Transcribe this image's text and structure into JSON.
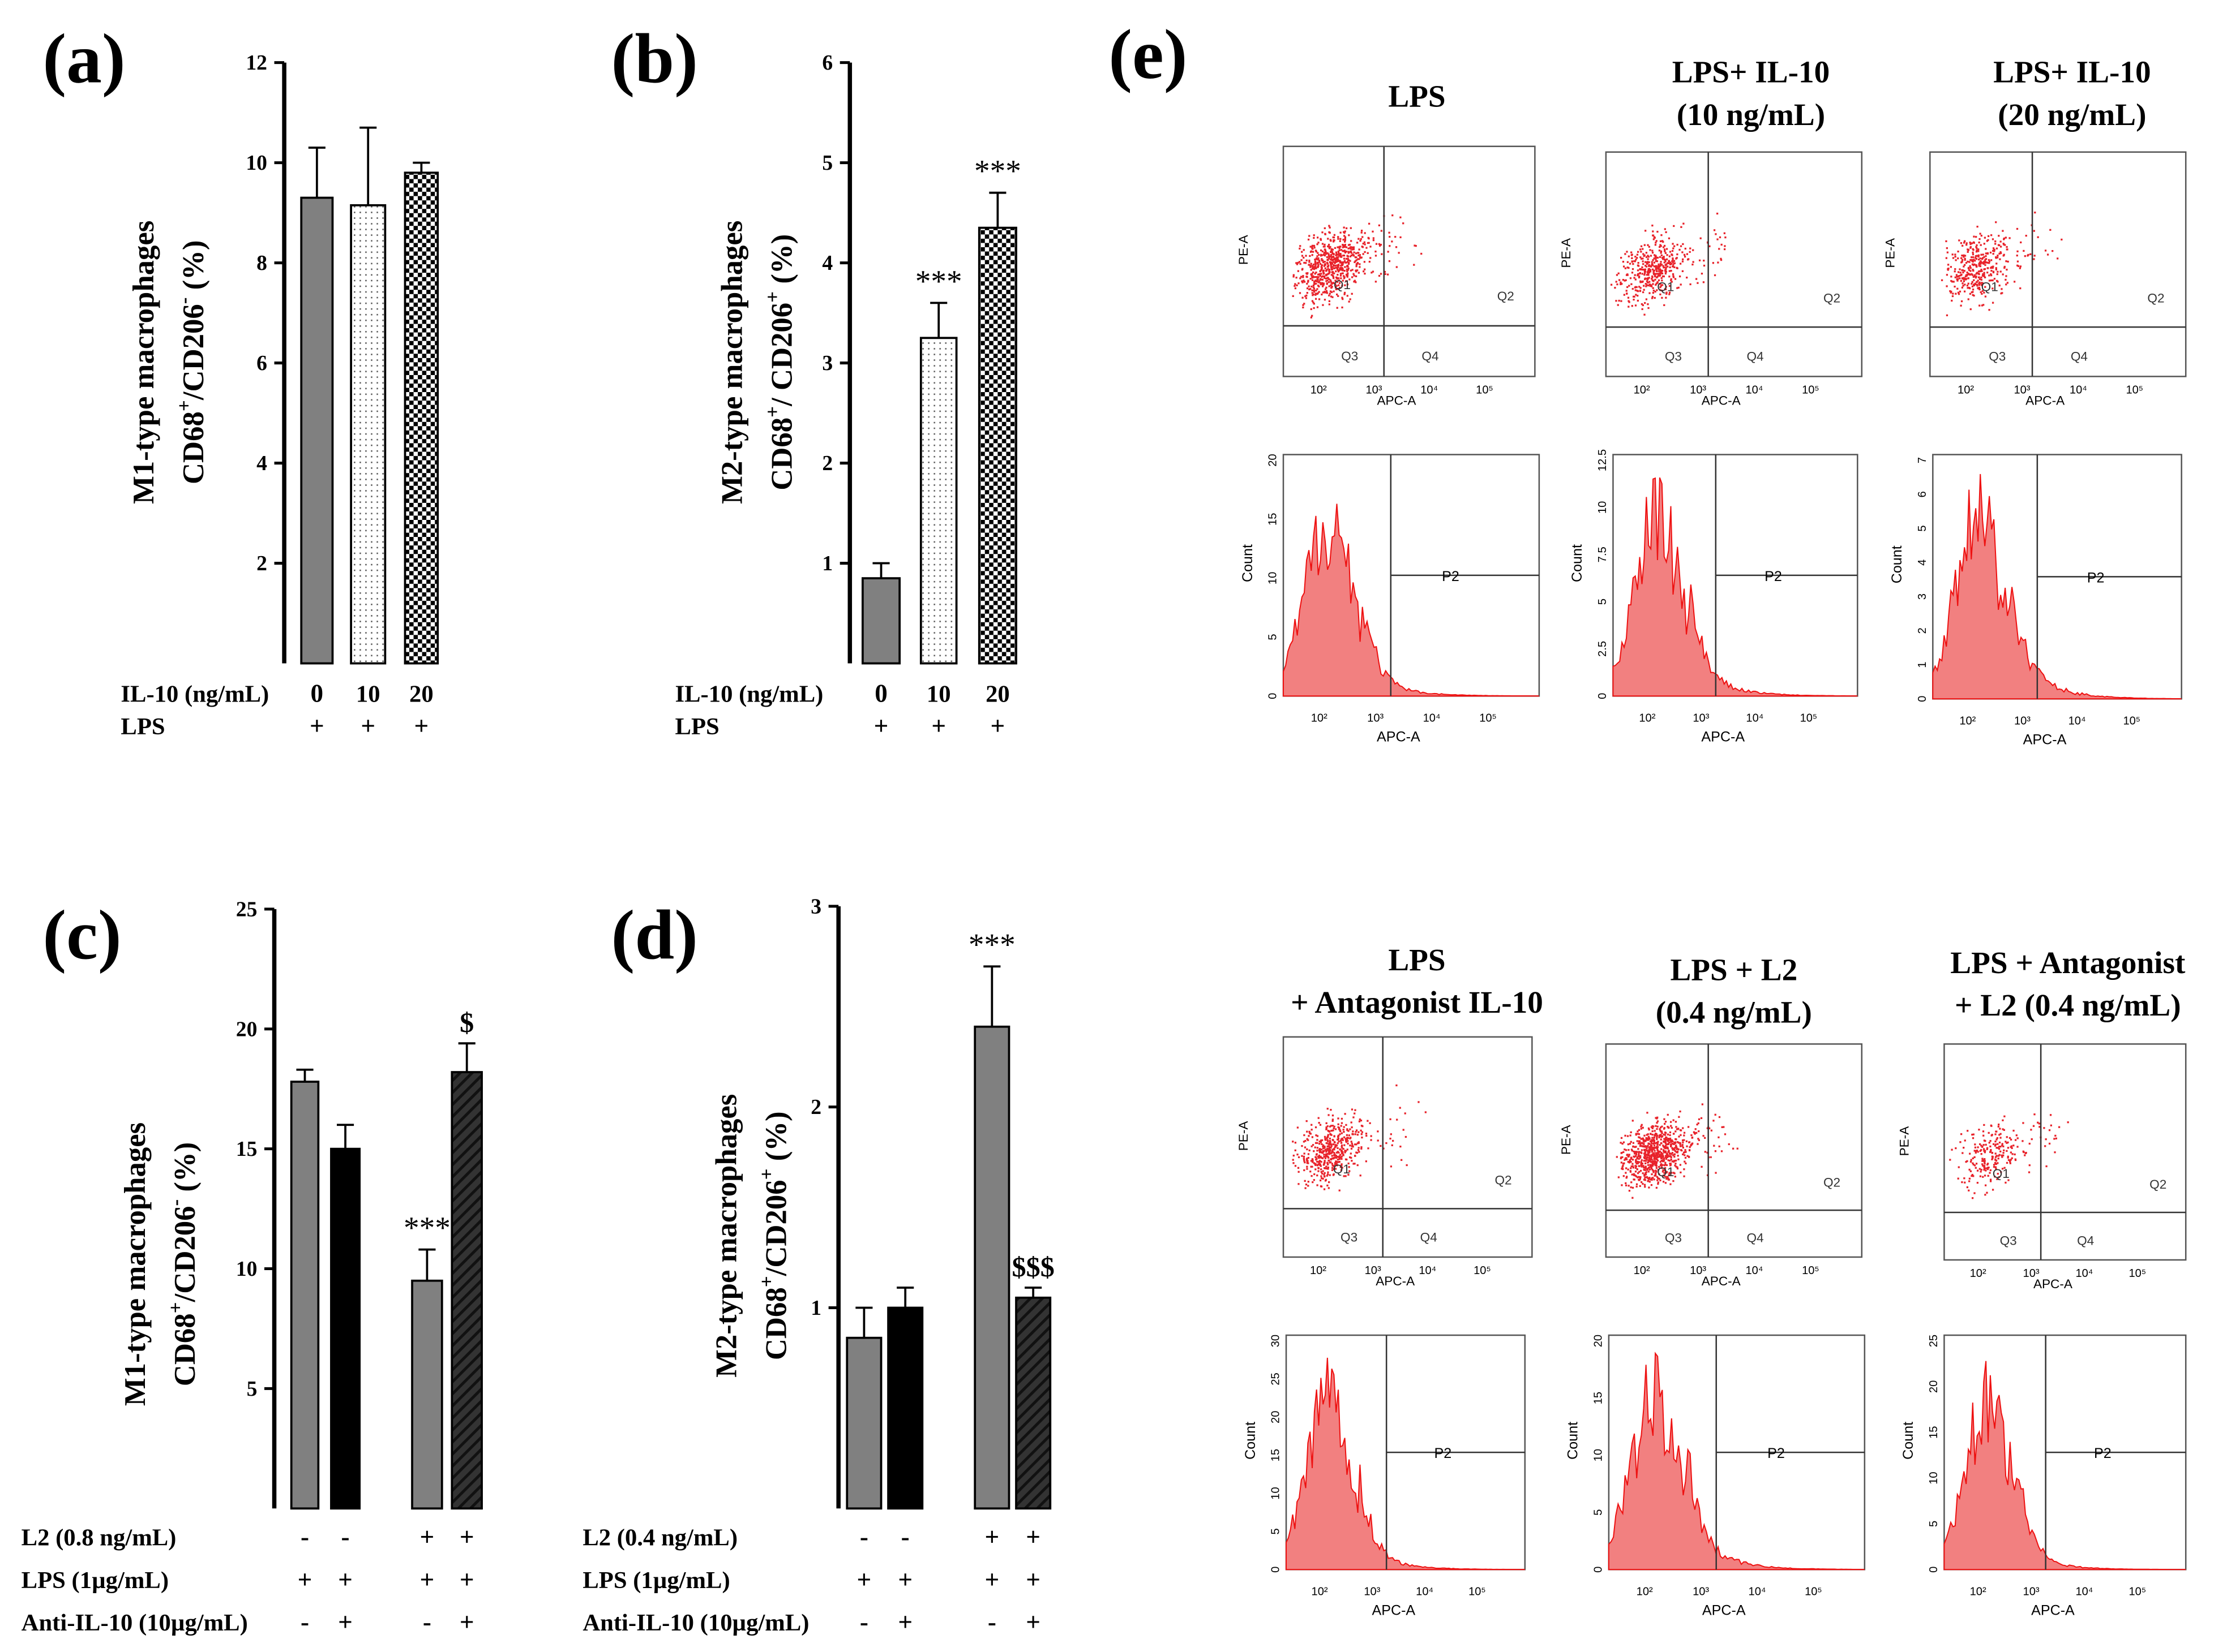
{
  "chart_data": [
    {
      "type": "bar",
      "panel": "(a)",
      "ylabel": [
        "M1-type macrophages",
        [
          "CD68",
          "+",
          "/CD206",
          "-",
          " (%)"
        ]
      ],
      "ylim": [
        0,
        12
      ],
      "yticks": [
        "2",
        "4",
        "6",
        "8",
        "10",
        "12"
      ],
      "values": [
        9.3,
        9.15,
        9.8
      ],
      "errors": [
        1.0,
        1.55,
        0.2
      ],
      "fills": [
        "gray",
        "dots",
        "checker"
      ],
      "annotations": [
        "",
        "",
        ""
      ],
      "treatments": [
        {
          "label": "IL-10 (ng/mL)",
          "values": [
            "0",
            "10",
            "20"
          ]
        },
        {
          "label": "LPS",
          "values": [
            "+",
            "+",
            "+"
          ]
        }
      ]
    },
    {
      "type": "bar",
      "panel": "(b)",
      "ylabel": [
        "M2-type macrophages",
        [
          "CD68",
          "+",
          "/ CD206",
          "+",
          " (%)"
        ]
      ],
      "ylim": [
        0,
        6
      ],
      "yticks": [
        "1",
        "2",
        "3",
        "4",
        "5",
        "6"
      ],
      "values": [
        0.85,
        3.25,
        4.35
      ],
      "errors": [
        0.15,
        0.35,
        0.35
      ],
      "fills": [
        "gray",
        "dots",
        "checker"
      ],
      "annotations": [
        "",
        "***",
        "***"
      ],
      "treatments": [
        {
          "label": "IL-10 (ng/mL)",
          "values": [
            "0",
            "10",
            "20"
          ]
        },
        {
          "label": "LPS",
          "values": [
            "+",
            "+",
            "+"
          ]
        }
      ]
    },
    {
      "type": "bar",
      "panel": "(c)",
      "ylabel": [
        "M1-type macrophages",
        [
          "CD68",
          "+",
          "/CD206",
          "-",
          " (%)"
        ]
      ],
      "ylim": [
        0,
        25
      ],
      "yticks": [
        "5",
        "10",
        "15",
        "20",
        "25"
      ],
      "values": [
        17.8,
        15.0,
        9.5,
        18.2
      ],
      "errors": [
        0.5,
        1.0,
        1.3,
        1.2
      ],
      "fills": [
        "gray",
        "black",
        "gray",
        "hatch"
      ],
      "annotations": [
        "",
        "",
        "***",
        "$"
      ],
      "treatments": [
        {
          "label": "L2  (0.8 ng/mL)",
          "values": [
            "-",
            "-",
            "+",
            "+"
          ]
        },
        {
          "label": "LPS (1µg/mL)",
          "values": [
            "+",
            "+",
            "+",
            "+"
          ]
        },
        {
          "label": "Anti-IL-10 (10µg/mL)",
          "values": [
            "-",
            "+",
            "-",
            "+"
          ]
        }
      ]
    },
    {
      "type": "bar",
      "panel": "(d)",
      "ylabel": [
        "M2-type macrophages",
        [
          "CD68",
          "+",
          "/CD206",
          "+",
          " (%)"
        ]
      ],
      "ylim": [
        0,
        3
      ],
      "yticks": [
        "1",
        "2",
        "3"
      ],
      "values": [
        0.85,
        1.0,
        2.4,
        1.05
      ],
      "errors": [
        0.15,
        0.1,
        0.3,
        0.05
      ],
      "fills": [
        "gray",
        "black",
        "gray",
        "hatch"
      ],
      "annotations": [
        "",
        "",
        "***",
        "$$$"
      ],
      "treatments": [
        {
          "label": "L2  (0.4 ng/mL)",
          "values": [
            "-",
            "-",
            "+",
            "+"
          ]
        },
        {
          "label": "LPS (1µg/mL)",
          "values": [
            "+",
            "+",
            "+",
            "+"
          ]
        },
        {
          "label": "Anti-IL-10 (10µg/mL)",
          "values": [
            "-",
            "+",
            "-",
            "+"
          ]
        }
      ]
    }
  ],
  "flow": {
    "panel": "(e)",
    "colors": {
      "dots": "#e8222a",
      "fill": "#f28080",
      "line": "#ee1111"
    },
    "scatter_axes": {
      "x": "APC-A",
      "y": "PE-A",
      "quadrants": [
        "Q1",
        "Q2",
        "Q3",
        "Q4"
      ]
    },
    "hist_axes": {
      "x": "APC-A",
      "y": "Count",
      "gate": "P2"
    },
    "x_ticks": [
      "10²",
      "10³",
      "10⁴",
      "10⁵"
    ],
    "samples": [
      {
        "title": [
          "LPS"
        ],
        "hist_yticks": [
          "20",
          "15",
          "10",
          "5",
          "0"
        ]
      },
      {
        "title": [
          "LPS+ IL-10",
          "(10 ng/mL)"
        ],
        "hist_yticks": [
          "12.5",
          "10",
          "7.5",
          "5",
          "2.5",
          "0"
        ]
      },
      {
        "title": [
          "LPS+ IL-10",
          "(20 ng/mL)"
        ],
        "hist_yticks": [
          "7",
          "6",
          "5",
          "4",
          "3",
          "2",
          "1",
          "0"
        ]
      },
      {
        "title": [
          "LPS",
          "+ Antagonist IL-10"
        ],
        "hist_yticks": [
          "30",
          "25",
          "20",
          "15",
          "10",
          "5",
          "0"
        ]
      },
      {
        "title": [
          "LPS + L2",
          "(0.4 ng/mL)"
        ],
        "hist_yticks": [
          "20",
          "15",
          "10",
          "5",
          "0"
        ]
      },
      {
        "title": [
          "LPS + Antagonist",
          "+ L2 (0.4 ng/mL)"
        ],
        "hist_yticks": [
          "25",
          "20",
          "15",
          "10",
          "5",
          "0"
        ]
      }
    ]
  }
}
